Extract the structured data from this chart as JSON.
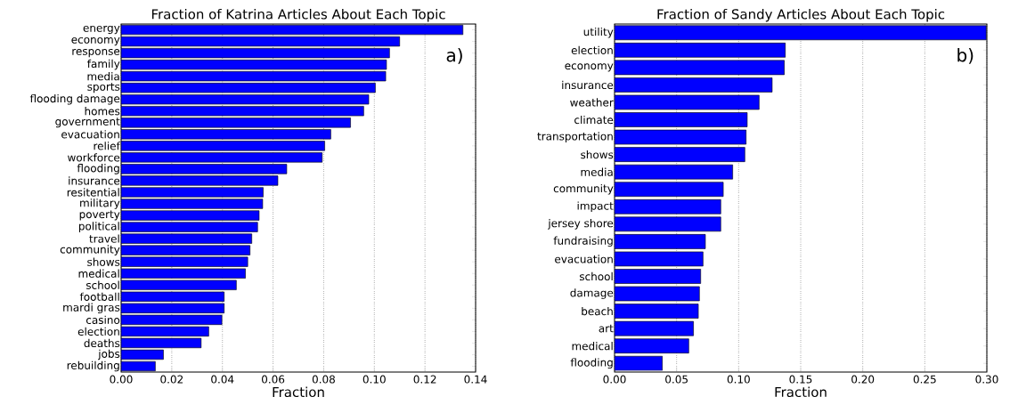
{
  "chart_data": [
    {
      "type": "bar",
      "orientation": "horizontal",
      "title": "Fraction of Katrina Articles About Each Topic",
      "xlabel": "Fraction",
      "categories": [
        "energy",
        "economy",
        "response",
        "family",
        "media",
        "sports",
        "flooding damage",
        "homes",
        "government",
        "evacuation",
        "relief",
        "workforce",
        "flooding",
        "insurance",
        "resitential",
        "military",
        "poverty",
        "political",
        "travel",
        "community",
        "shows",
        "medical",
        "school",
        "football",
        "mardi gras",
        "casino",
        "election",
        "deaths",
        "jobs",
        "rebuilding"
      ],
      "values": [
        0.135,
        0.11,
        0.106,
        0.1048,
        0.1045,
        0.1004,
        0.0978,
        0.0958,
        0.0906,
        0.0828,
        0.0804,
        0.0794,
        0.0654,
        0.0619,
        0.0561,
        0.0559,
        0.0545,
        0.0539,
        0.0516,
        0.0509,
        0.05,
        0.0491,
        0.0455,
        0.0407,
        0.0407,
        0.0398,
        0.0346,
        0.0316,
        0.0167,
        0.0135
      ],
      "color": "#0000ff",
      "xlim": [
        0,
        0.14
      ],
      "xticks": [
        {
          "value": 0,
          "label": "0.00"
        },
        {
          "value": 0.02,
          "label": "0.02"
        },
        {
          "value": 0.04,
          "label": "0.04"
        },
        {
          "value": 0.06,
          "label": "0.06"
        },
        {
          "value": 0.08,
          "label": "0.08"
        },
        {
          "value": 0.1,
          "label": "0.10"
        },
        {
          "value": 0.12,
          "label": "0.12"
        },
        {
          "value": 0.14,
          "label": "0.14"
        }
      ],
      "grid": "x",
      "annotations": [
        "a)"
      ]
    },
    {
      "type": "bar",
      "orientation": "horizontal",
      "title": "Fraction of Sandy Articles About Each Topic",
      "xlabel": "Fraction",
      "categories": [
        "utility",
        "election",
        "economy",
        "insurance",
        "weather",
        "climate",
        "transportation",
        "shows",
        "media",
        "community",
        "impact",
        "jersey shore",
        "fundraising",
        "evacuation",
        "school",
        "damage",
        "beach",
        "art",
        "medical",
        "flooding"
      ],
      "values": [
        0.2995,
        0.1376,
        0.1368,
        0.127,
        0.1165,
        0.1069,
        0.106,
        0.105,
        0.0952,
        0.0876,
        0.0856,
        0.0856,
        0.0732,
        0.0713,
        0.0694,
        0.0684,
        0.0675,
        0.0636,
        0.0598,
        0.0385
      ],
      "color": "#0000ff",
      "xlim": [
        0,
        0.3
      ],
      "xticks": [
        {
          "value": 0,
          "label": "0.00"
        },
        {
          "value": 0.05,
          "label": "0.05"
        },
        {
          "value": 0.1,
          "label": "0.10"
        },
        {
          "value": 0.15,
          "label": "0.15"
        },
        {
          "value": 0.2,
          "label": "0.20"
        },
        {
          "value": 0.25,
          "label": "0.25"
        },
        {
          "value": 0.3,
          "label": "0.30"
        }
      ],
      "grid": "x",
      "annotations": [
        "b)"
      ]
    }
  ]
}
